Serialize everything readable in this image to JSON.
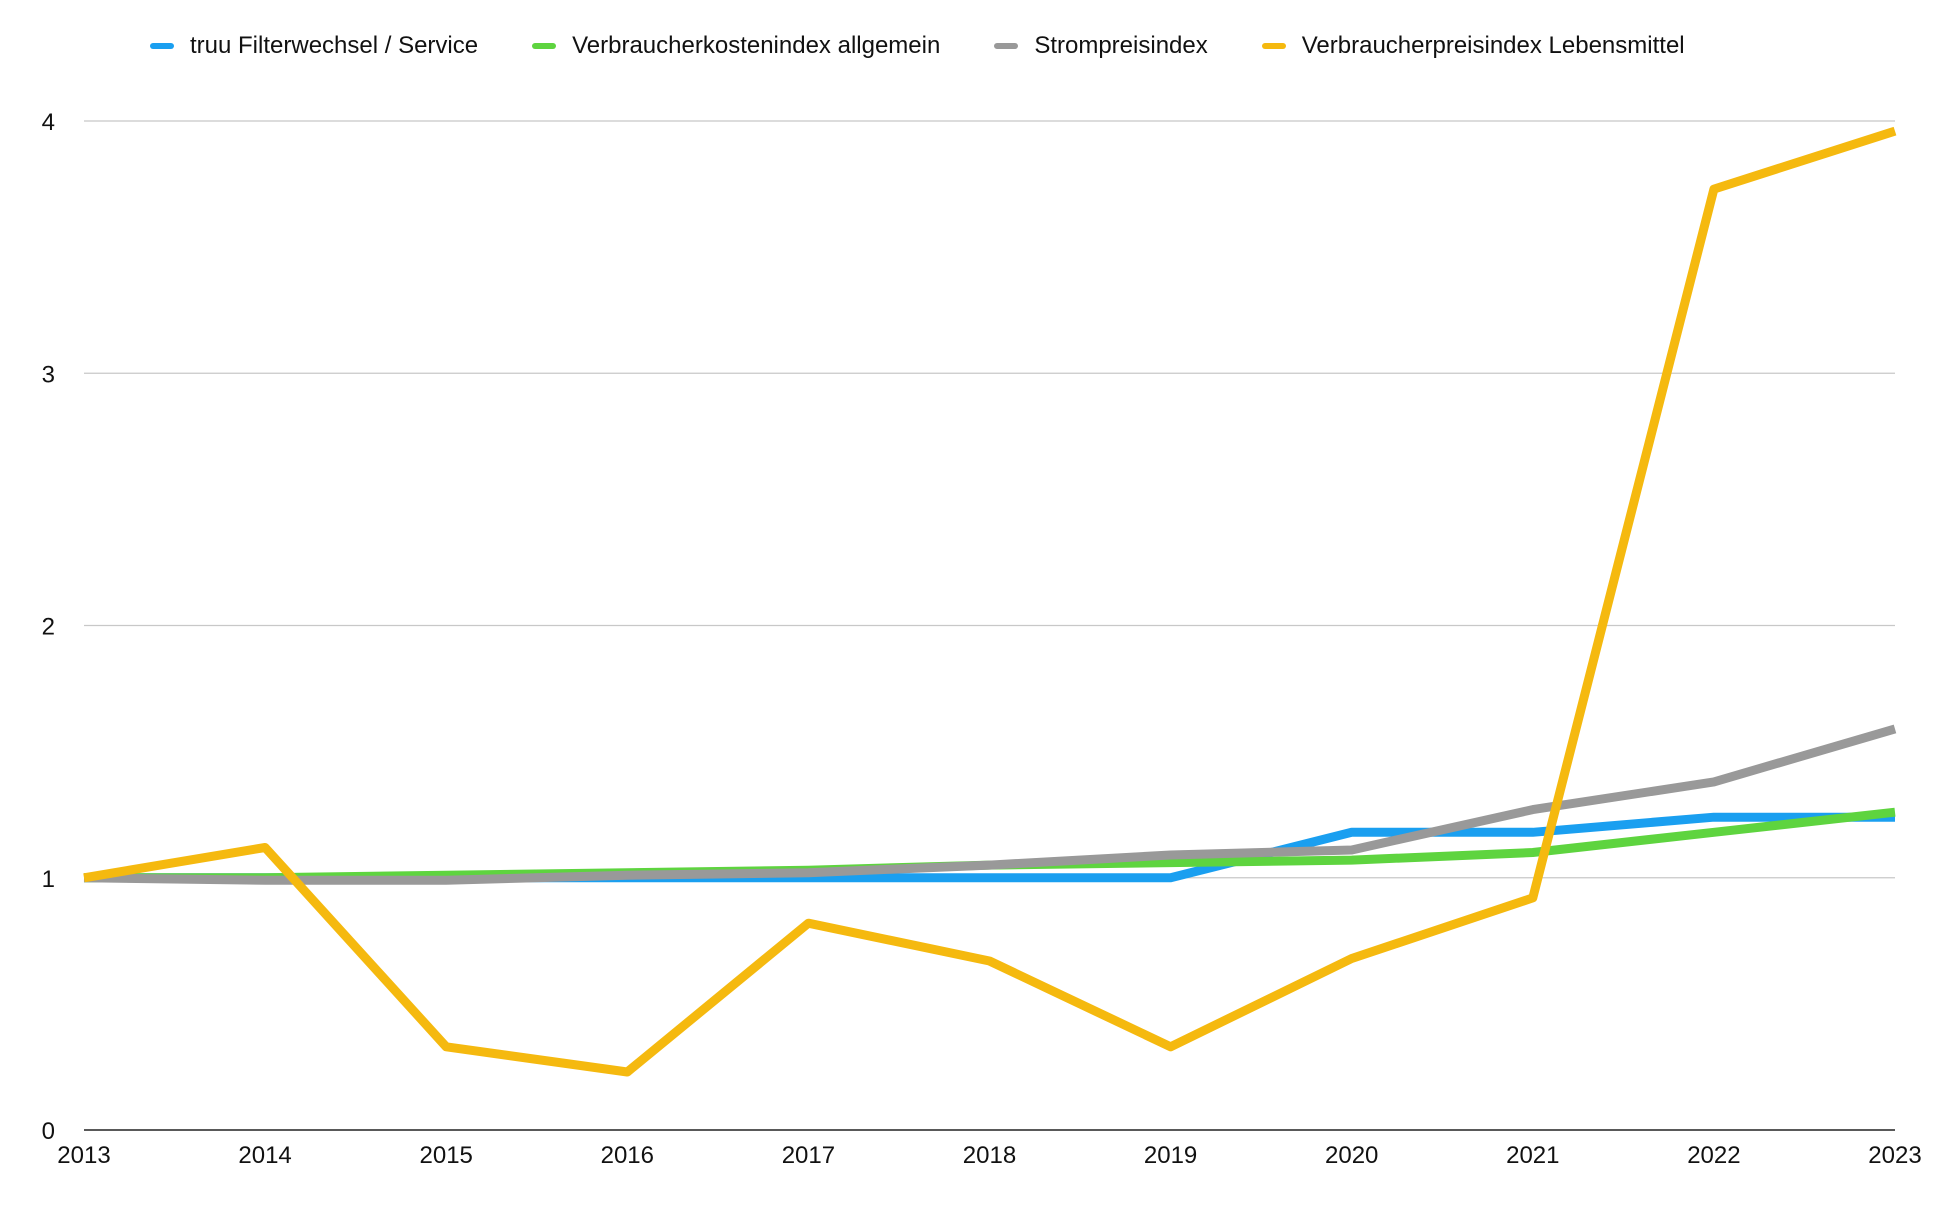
{
  "chart_data": {
    "type": "line",
    "title": "",
    "xlabel": "",
    "ylabel": "",
    "categories": [
      "2013",
      "2014",
      "2015",
      "2016",
      "2017",
      "2018",
      "2019",
      "2020",
      "2021",
      "2022",
      "2023"
    ],
    "ylim": [
      0,
      4
    ],
    "yticks": [
      "0",
      "1",
      "2",
      "3",
      "4"
    ],
    "grid": true,
    "legend_position": "top",
    "series": [
      {
        "name": "truu Filterwechsel / Service",
        "color": "#1a9ff0",
        "values": [
          1.0,
          1.0,
          1.0,
          1.0,
          1.0,
          1.0,
          1.0,
          1.18,
          1.18,
          1.24,
          1.24
        ]
      },
      {
        "name": "Verbraucherkostenindex allgemein",
        "color": "#5ed43f",
        "values": [
          1.0,
          1.0,
          1.01,
          1.02,
          1.03,
          1.05,
          1.06,
          1.07,
          1.1,
          1.18,
          1.26
        ]
      },
      {
        "name": "Strompreisindex",
        "color": "#999999",
        "values": [
          1.0,
          0.99,
          0.99,
          1.01,
          1.02,
          1.05,
          1.09,
          1.11,
          1.27,
          1.38,
          1.59
        ]
      },
      {
        "name": "Verbraucherpreisindex Lebensmittel",
        "color": "#f5b90f",
        "values": [
          1.0,
          1.12,
          0.33,
          0.23,
          0.82,
          0.67,
          0.33,
          0.68,
          0.92,
          3.73,
          3.96
        ]
      }
    ]
  }
}
